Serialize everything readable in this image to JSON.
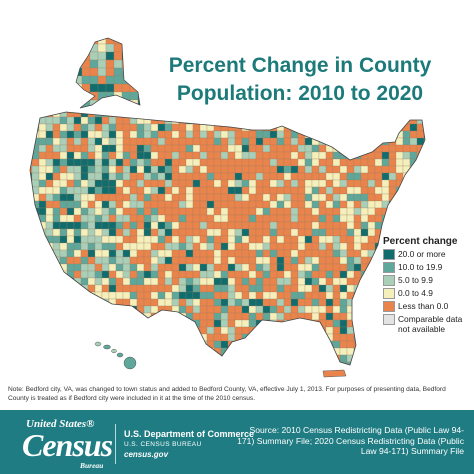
{
  "title": {
    "line1": "Percent Change in County",
    "line2": "Population: 2010 to 2020"
  },
  "legend": {
    "title": "Percent change",
    "items": [
      {
        "label": "20.0 or more",
        "color": "#116d6d"
      },
      {
        "label": "10.0 to 19.9",
        "color": "#5ea79a"
      },
      {
        "label": "5.0 to 9.9",
        "color": "#a9cfb8"
      },
      {
        "label": "0.0 to 4.9",
        "color": "#f4efbb"
      },
      {
        "label": "Less than 0.0",
        "color": "#e8844c"
      },
      {
        "label": "Comparable data not available",
        "color": "#e3e3e3"
      }
    ]
  },
  "note": "Note: Bedford city, VA, was changed to town status and added to Bedford County, VA, effective July 1, 2013. For purposes of presenting data, Bedford County is treated as if Bedford city were included in it at the time of the 2010 census.",
  "footer": {
    "logo_top": "United States®",
    "logo_main": "Census",
    "logo_sub": "Bureau",
    "dept_line1": "U.S. Department of Commerce",
    "dept_line2": "U.S. CENSUS BUREAU",
    "dept_line3": "census.gov",
    "source": "Source: 2010 Census Redistricting Data (Public Law 94-171) Summary File; 2020 Census Redistricting Data (Public Law 94-171) Summary File"
  }
}
